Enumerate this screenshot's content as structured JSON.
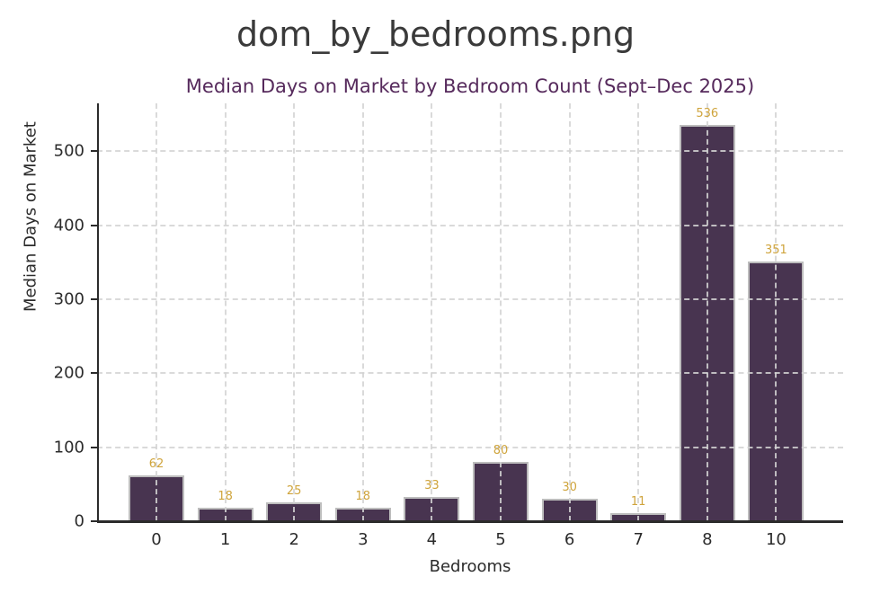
{
  "figure": {
    "title": "dom_by_bedrooms.png"
  },
  "chart_data": {
    "type": "bar",
    "title": "Median Days on Market by Bedroom Count (Sept–Dec 2025)",
    "xlabel": "Bedrooms",
    "ylabel": "Median Days on Market",
    "categories": [
      "0",
      "1",
      "2",
      "3",
      "4",
      "5",
      "6",
      "7",
      "8",
      "10"
    ],
    "values": [
      62,
      18,
      25,
      18,
      33,
      80,
      30,
      11,
      536,
      351
    ],
    "value_labels": [
      "62",
      "18",
      "25",
      "18",
      "33",
      "80",
      "30",
      "11",
      "536",
      "351"
    ],
    "yticks": [
      0,
      100,
      200,
      300,
      400,
      500
    ],
    "ylim": [
      0,
      565
    ],
    "grid": "dashed, horizontal and vertical, drawn above bars",
    "legend_position": "none",
    "colors": {
      "bar_fill": "#483450",
      "bar_edge": "#bdbdbd",
      "value_label": "#cfa43c",
      "axes_title": "#562a5c",
      "figure_title": "#3a3a3a",
      "grid": "#d4d4d4",
      "spine": "#2b2b2b"
    }
  }
}
